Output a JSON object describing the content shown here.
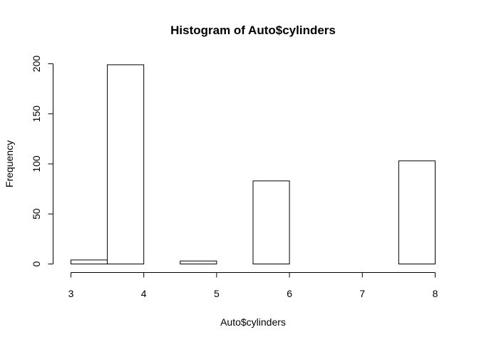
{
  "chart_data": {
    "type": "bar",
    "title": "Histogram of Auto$cylinders",
    "xlabel": "Auto$cylinders",
    "ylabel": "Frequency",
    "bins": [
      {
        "start": 3.0,
        "end": 3.5,
        "count": 4
      },
      {
        "start": 3.5,
        "end": 4.0,
        "count": 199
      },
      {
        "start": 4.0,
        "end": 4.5,
        "count": 0
      },
      {
        "start": 4.5,
        "end": 5.0,
        "count": 3
      },
      {
        "start": 5.0,
        "end": 5.5,
        "count": 0
      },
      {
        "start": 5.5,
        "end": 6.0,
        "count": 83
      },
      {
        "start": 6.0,
        "end": 6.5,
        "count": 0
      },
      {
        "start": 6.5,
        "end": 7.0,
        "count": 0
      },
      {
        "start": 7.0,
        "end": 7.5,
        "count": 0
      },
      {
        "start": 7.5,
        "end": 8.0,
        "count": 103
      }
    ],
    "xlim": [
      3,
      8
    ],
    "ylim": [
      0,
      200
    ],
    "x_ticks": [
      "3",
      "4",
      "5",
      "6",
      "7",
      "8"
    ],
    "y_ticks": [
      "0",
      "50",
      "100",
      "150",
      "200"
    ],
    "grid": false,
    "legend": "none"
  }
}
